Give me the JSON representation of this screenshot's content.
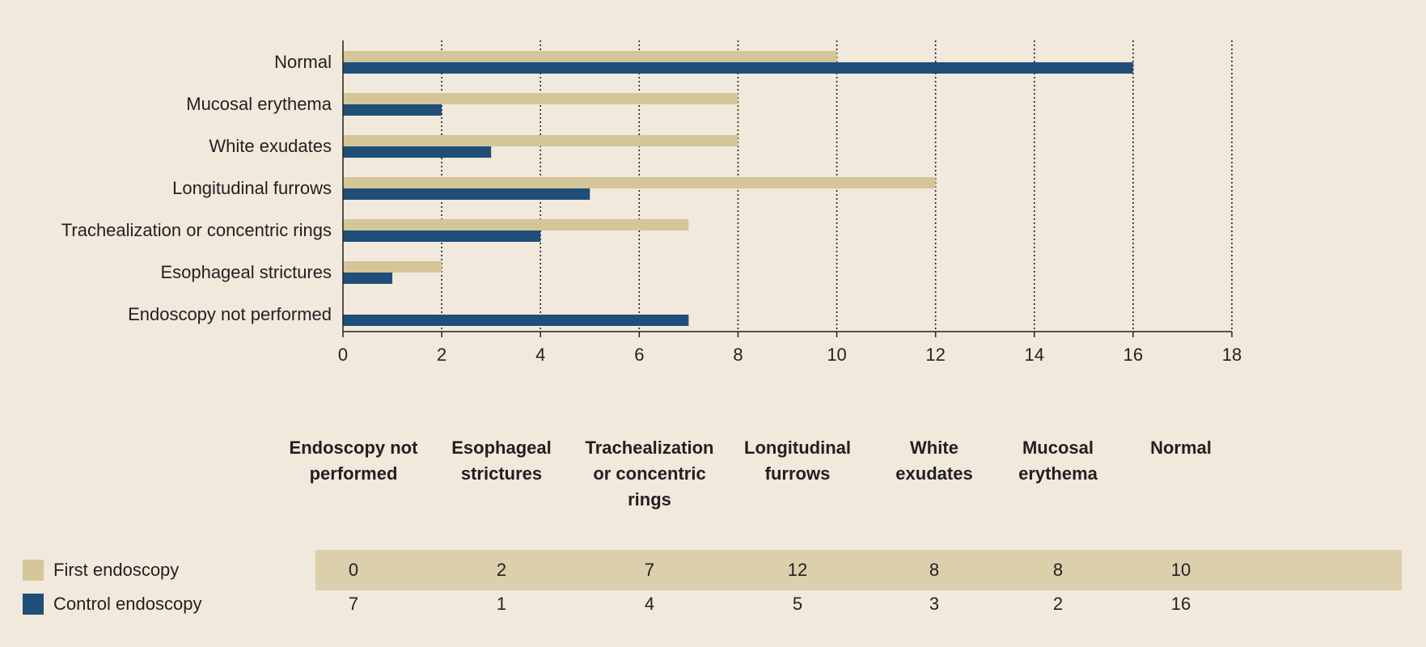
{
  "chart_data": {
    "type": "bar",
    "orientation": "horizontal",
    "categories": [
      "Normal",
      "Mucosal erythema",
      "White exudates",
      "Longitudinal furrows",
      "Trachealization or concentric rings",
      "Esophageal strictures",
      "Endoscopy not performed"
    ],
    "series": [
      {
        "name": "First endoscopy",
        "color": "#d4c698",
        "values": [
          10,
          8,
          8,
          12,
          7,
          2,
          0
        ]
      },
      {
        "name": "Control endoscopy",
        "color": "#1f4e79",
        "values": [
          16,
          2,
          3,
          5,
          4,
          1,
          7
        ]
      }
    ],
    "xlim": [
      0,
      18
    ],
    "xticks": [
      0,
      2,
      4,
      6,
      8,
      10,
      12,
      14,
      16,
      18
    ],
    "grid": "vertical-dotted"
  },
  "table": {
    "columns": [
      [
        "Endoscopy not",
        "performed"
      ],
      [
        "Esophageal",
        "strictures"
      ],
      [
        "Trachealization",
        "or concentric",
        "rings"
      ],
      [
        "Longitudinal",
        "furrows"
      ],
      [
        "White",
        "exudates"
      ],
      [
        "Mucosal",
        "erythema"
      ],
      [
        "Normal"
      ]
    ],
    "rows": [
      {
        "label": "First endoscopy",
        "color": "#d4c698",
        "values": [
          "0",
          "2",
          "7",
          "12",
          "8",
          "8",
          "10"
        ]
      },
      {
        "label": "Control endoscopy",
        "color": "#1f4e79",
        "values": [
          "7",
          "1",
          "4",
          "5",
          "3",
          "2",
          "16"
        ]
      }
    ]
  }
}
